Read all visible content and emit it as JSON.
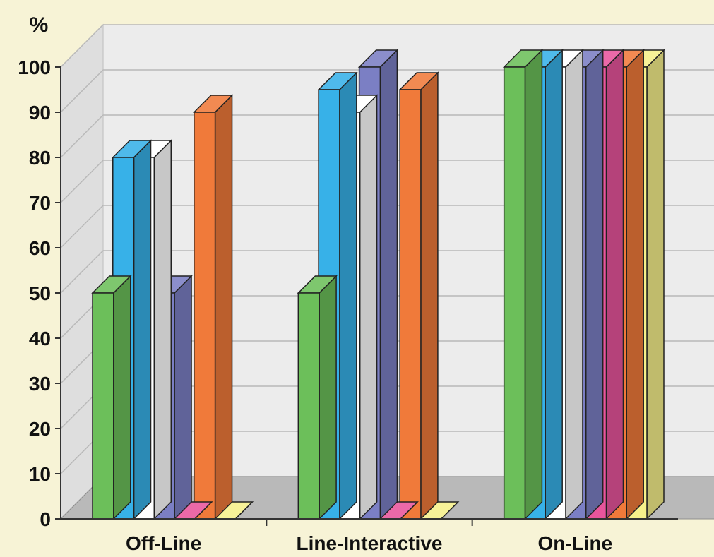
{
  "chart_data": {
    "type": "bar",
    "style": "3d-clustered",
    "ylabel": "%",
    "ylim": [
      0,
      100
    ],
    "yticks": [
      0,
      10,
      20,
      30,
      40,
      50,
      60,
      70,
      80,
      90,
      100
    ],
    "grid": true,
    "categories": [
      "Off-Line",
      "Line-Interactive",
      "On-Line"
    ],
    "series": [
      {
        "color": "#6cbf5a",
        "values": [
          50,
          50,
          100
        ]
      },
      {
        "color": "#37b1e8",
        "values": [
          80,
          95,
          100
        ]
      },
      {
        "color": "#ffffff",
        "values": [
          80,
          90,
          100
        ]
      },
      {
        "color": "#7b7fc4",
        "values": [
          50,
          100,
          100
        ]
      },
      {
        "color": "#e8559c",
        "values": [
          0,
          0,
          100
        ]
      },
      {
        "color": "#f07a3a",
        "values": [
          90,
          95,
          100
        ]
      },
      {
        "color": "#f6f08a",
        "values": [
          0,
          0,
          100
        ]
      }
    ]
  }
}
